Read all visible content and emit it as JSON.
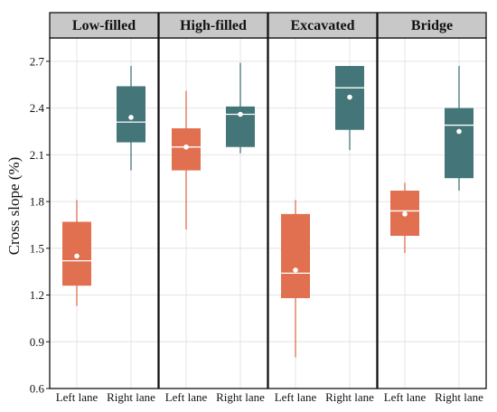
{
  "chart_data": {
    "type": "box",
    "ylabel": "Cross slope (%)",
    "ylim": [
      0.6,
      2.85
    ],
    "yticks": [
      0.6,
      0.9,
      1.2,
      1.5,
      1.8,
      2.1,
      2.4,
      2.7
    ],
    "ytick_labels": [
      "0.6",
      "0.9",
      "1.2",
      "1.5",
      "1.8",
      "2.1",
      "2.4",
      "2.7"
    ],
    "grid": true,
    "categories": [
      "Left lane",
      "Right lane"
    ],
    "colors": {
      "Left lane": "#e07050",
      "Right lane": "#437579"
    },
    "panels": [
      {
        "title": "Low-filled",
        "boxes": [
          {
            "category": "Left lane",
            "min": 1.13,
            "q1": 1.26,
            "median": 1.42,
            "q3": 1.67,
            "max": 1.81,
            "mean": 1.45
          },
          {
            "category": "Right lane",
            "min": 2.0,
            "q1": 2.18,
            "median": 2.31,
            "q3": 2.54,
            "max": 2.67,
            "mean": 2.34
          }
        ]
      },
      {
        "title": "High-filled",
        "boxes": [
          {
            "category": "Left lane",
            "min": 1.62,
            "q1": 2.0,
            "median": 2.15,
            "q3": 2.27,
            "max": 2.51,
            "mean": 2.15
          },
          {
            "category": "Right lane",
            "min": 2.11,
            "q1": 2.15,
            "median": 2.36,
            "q3": 2.41,
            "max": 2.69,
            "mean": 2.36
          }
        ]
      },
      {
        "title": "Excavated",
        "boxes": [
          {
            "category": "Left lane",
            "min": 0.8,
            "q1": 1.18,
            "median": 1.34,
            "q3": 1.72,
            "max": 1.81,
            "mean": 1.36
          },
          {
            "category": "Right lane",
            "min": 2.13,
            "q1": 2.26,
            "median": 2.53,
            "q3": 2.67,
            "max": 2.67,
            "mean": 2.47
          }
        ]
      },
      {
        "title": "Bridge",
        "boxes": [
          {
            "category": "Left lane",
            "min": 1.47,
            "q1": 1.58,
            "median": 1.74,
            "q3": 1.87,
            "max": 1.92,
            "mean": 1.72
          },
          {
            "category": "Right lane",
            "min": 1.87,
            "q1": 1.95,
            "median": 2.29,
            "q3": 2.4,
            "max": 2.67,
            "mean": 2.25
          }
        ]
      }
    ]
  }
}
